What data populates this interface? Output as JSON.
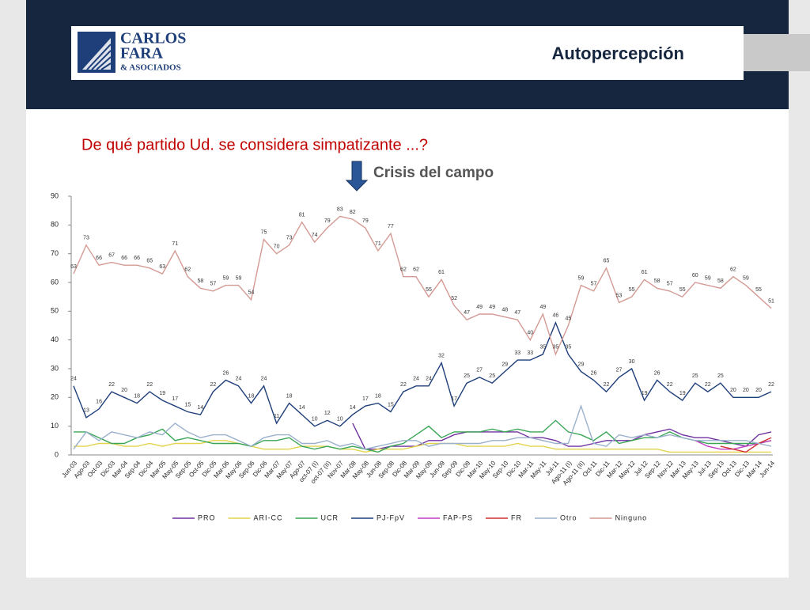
{
  "header": {
    "logo_lines": [
      "CARLOS",
      "FARA",
      "& ASOCIADOS"
    ],
    "title": "Autopercepción"
  },
  "chart_data": {
    "type": "line",
    "title": "De qué partido Ud. se considera simpatizante ...?",
    "annotation": "Crisis del campo",
    "categories": [
      "Jun-03",
      "Ago-03",
      "Oct-03",
      "Dic-03",
      "Mar-04",
      "Sep-04",
      "Dic-04",
      "Mar-05",
      "May-05",
      "Sep-05",
      "Oct-05",
      "Dic-05",
      "Mar-06",
      "May-06",
      "Sep-06",
      "Dic-06",
      "Mar-07",
      "May-07",
      "Ago-07",
      "oct-07 (I)",
      "oct-07 (II)",
      "Nov-07",
      "Mar-08",
      "May-08",
      "Jun-08",
      "Sep-08",
      "Dic-08",
      "Mar-09",
      "May-09",
      "Jun-09",
      "Sep-09",
      "Dic-09",
      "Mar-10",
      "May-10",
      "Sep-10",
      "Dic-10",
      "Mar-11",
      "May-11",
      "Jul-11",
      "Ago-11 (I)",
      "Ago-11 (II)",
      "Oct-11",
      "Dic-11",
      "Mar-12",
      "May-12",
      "Jul-12",
      "Sep-12",
      "Nov-12",
      "Mar-13",
      "May-13",
      "Jul-13",
      "Sep-13",
      "Oct-13",
      "Dic-13",
      "Mar-14",
      "Jun-14"
    ],
    "ylim": [
      0,
      90
    ],
    "yticks": [
      0,
      10,
      20,
      30,
      40,
      50,
      60,
      70,
      80,
      90
    ],
    "grid": false,
    "legend": "bottom",
    "series": [
      {
        "name": "PRO",
        "color": "#7030a0",
        "labels": false,
        "values": [
          null,
          null,
          null,
          null,
          null,
          null,
          null,
          null,
          null,
          null,
          null,
          null,
          null,
          null,
          null,
          null,
          null,
          null,
          null,
          null,
          null,
          null,
          11,
          2,
          2,
          3,
          3,
          3,
          5,
          5,
          7,
          8,
          8,
          8,
          8,
          8,
          6,
          6,
          5,
          3,
          3,
          4,
          5,
          5,
          5,
          7,
          8,
          9,
          7,
          6,
          6,
          5,
          4,
          3,
          7,
          8
        ]
      },
      {
        "name": "ARI-CC",
        "color": "#e3d44c",
        "labels": false,
        "values": [
          3,
          3,
          4,
          4,
          3,
          3,
          4,
          3,
          4,
          4,
          4,
          5,
          5,
          4,
          3,
          2,
          2,
          2,
          3,
          3,
          3,
          2,
          2,
          1,
          2,
          2,
          2,
          3,
          4,
          4,
          4,
          3,
          3,
          3,
          3,
          4,
          3,
          3,
          2,
          2,
          2,
          2,
          2,
          2,
          2,
          2,
          2,
          1,
          1,
          1,
          1,
          1,
          1,
          1,
          1,
          1
        ]
      },
      {
        "name": "UCR",
        "color": "#3aa655",
        "labels": false,
        "values": [
          8,
          8,
          6,
          4,
          4,
          6,
          7,
          9,
          5,
          6,
          5,
          4,
          4,
          4,
          3,
          5,
          5,
          6,
          3,
          2,
          3,
          2,
          3,
          2,
          1,
          3,
          4,
          7,
          10,
          6,
          8,
          8,
          8,
          9,
          8,
          9,
          8,
          8,
          12,
          8,
          7,
          5,
          8,
          4,
          5,
          6,
          6,
          8,
          6,
          5,
          4,
          4,
          4,
          4,
          4,
          5
        ]
      },
      {
        "name": "PJ-FpV",
        "color": "#1f3f7a",
        "labels": true,
        "values": [
          24,
          13,
          16,
          22,
          20,
          18,
          22,
          19,
          17,
          15,
          14,
          22,
          26,
          24,
          18,
          24,
          11,
          18,
          14,
          10,
          12,
          10,
          14,
          17,
          18,
          15,
          22,
          24,
          24,
          32,
          17,
          25,
          27,
          25,
          29,
          33,
          33,
          35,
          46,
          35,
          29,
          26,
          22,
          27,
          30,
          19,
          26,
          22,
          19,
          25,
          22,
          25,
          20,
          20,
          20,
          22
        ]
      },
      {
        "name": "FAP-PS",
        "color": "#c23cc0",
        "labels": false,
        "values": [
          null,
          null,
          null,
          null,
          null,
          null,
          null,
          null,
          null,
          null,
          null,
          null,
          null,
          null,
          null,
          null,
          null,
          null,
          null,
          null,
          null,
          null,
          null,
          null,
          null,
          null,
          null,
          null,
          null,
          null,
          null,
          null,
          null,
          null,
          null,
          null,
          null,
          null,
          null,
          null,
          null,
          null,
          null,
          null,
          null,
          null,
          null,
          null,
          null,
          5,
          3,
          2,
          2,
          3,
          4,
          5
        ]
      },
      {
        "name": "FR",
        "color": "#d03030",
        "labels": false,
        "values": [
          null,
          null,
          null,
          null,
          null,
          null,
          null,
          null,
          null,
          null,
          null,
          null,
          null,
          null,
          null,
          null,
          null,
          null,
          null,
          null,
          null,
          null,
          null,
          null,
          null,
          null,
          null,
          null,
          null,
          null,
          null,
          null,
          null,
          null,
          null,
          null,
          null,
          null,
          null,
          null,
          null,
          null,
          null,
          null,
          null,
          null,
          null,
          null,
          null,
          null,
          null,
          3,
          2,
          1,
          4,
          6
        ]
      },
      {
        "name": "Otro",
        "color": "#9ab0cc",
        "labels": false,
        "values": [
          2,
          8,
          5,
          8,
          7,
          6,
          8,
          7,
          11,
          8,
          6,
          7,
          7,
          5,
          3,
          6,
          7,
          7,
          4,
          4,
          5,
          3,
          4,
          2,
          3,
          4,
          5,
          5,
          3,
          4,
          4,
          4,
          4,
          5,
          5,
          6,
          6,
          5,
          4,
          4,
          17,
          4,
          3,
          7,
          6,
          7,
          6,
          7,
          6,
          5,
          5,
          5,
          5,
          5,
          4,
          3
        ]
      },
      {
        "name": "Ninguno",
        "color": "#d49a94",
        "labels": true,
        "values": [
          63,
          73,
          66,
          67,
          66,
          66,
          65,
          63,
          71,
          62,
          58,
          57,
          59,
          59,
          54,
          75,
          70,
          73,
          81,
          74,
          79,
          83,
          82,
          79,
          71,
          77,
          62,
          62,
          55,
          61,
          52,
          47,
          49,
          49,
          48,
          47,
          40,
          49,
          35,
          45,
          59,
          57,
          65,
          53,
          55,
          61,
          58,
          57,
          55,
          60,
          59,
          58,
          62,
          59,
          55,
          51
        ]
      }
    ]
  }
}
